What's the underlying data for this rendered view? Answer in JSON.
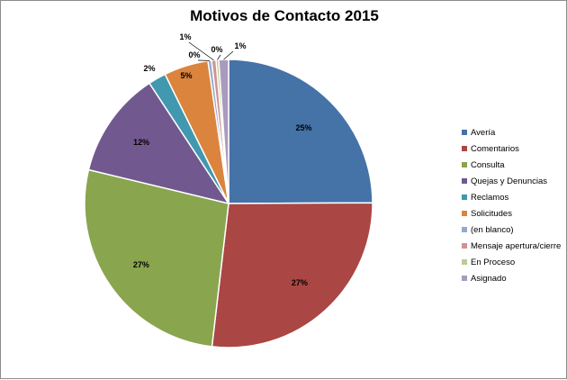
{
  "chart_data": {
    "type": "pie",
    "title": "Motivos de Contacto 2015",
    "legend_position": "right",
    "slices": [
      {
        "name": "Avería",
        "value": 25,
        "label": "25%",
        "color": "#4572A7"
      },
      {
        "name": "Comentarios",
        "value": 27,
        "label": "27%",
        "color": "#AA4643"
      },
      {
        "name": "Consulta",
        "value": 27,
        "label": "27%",
        "color": "#89A54E"
      },
      {
        "name": "Quejas y Denuncias",
        "value": 12,
        "label": "12%",
        "color": "#71588F"
      },
      {
        "name": "Reclamos",
        "value": 2,
        "label": "2%",
        "color": "#4198AF"
      },
      {
        "name": "Solicitudes",
        "value": 5,
        "label": "5%",
        "color": "#DB843D"
      },
      {
        "name": "(en blanco)",
        "value": 0.4,
        "label": "0%",
        "color": "#93A9CF"
      },
      {
        "name": "Mensaje apertura/cierre",
        "value": 0.5,
        "label": "1%",
        "color": "#D19392"
      },
      {
        "name": "En Proceso",
        "value": 0.3,
        "label": "0%",
        "color": "#B9CD96"
      },
      {
        "name": "Asignado",
        "value": 1.1,
        "label": "1%",
        "color": "#A99BBD"
      }
    ]
  }
}
